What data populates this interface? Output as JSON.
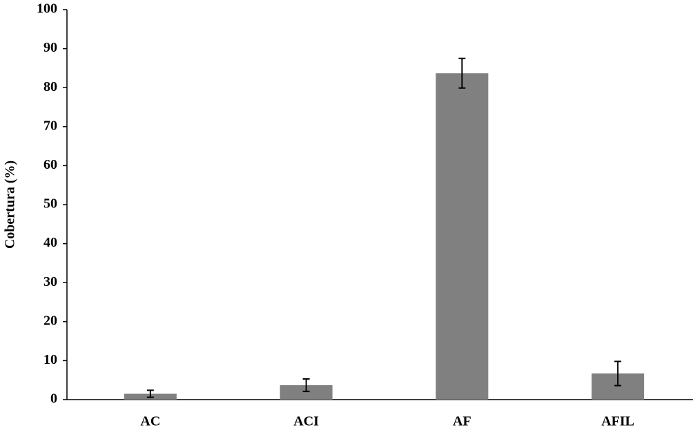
{
  "chart_data": {
    "type": "bar",
    "y_label": "Cobertura (%)",
    "categories": [
      "AC",
      "ACI",
      "AF",
      "AFIL"
    ],
    "values": [
      1.5,
      3.7,
      83.7,
      6.7
    ],
    "errors": [
      0.9,
      1.6,
      3.8,
      3.1
    ],
    "color": "#808080",
    "ylim": [
      0,
      100
    ],
    "yticks": [
      0,
      10,
      20,
      30,
      40,
      50,
      60,
      70,
      80,
      90,
      100
    ],
    "grid": false
  }
}
